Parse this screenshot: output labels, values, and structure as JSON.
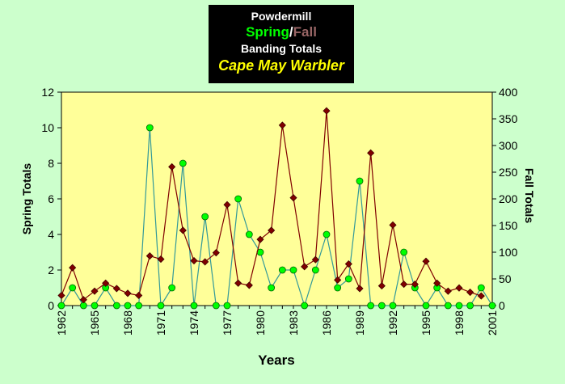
{
  "title": {
    "line1": "Powdermill",
    "spring_word": "Spring",
    "slash": "/",
    "fall_word": "Fall",
    "line3": "Banding Totals",
    "species": "Cape May Warbler"
  },
  "colors": {
    "background": "#ccffcc",
    "plot_background": "#ffff99",
    "spring_line": "#339999",
    "spring_marker": "#00ff00",
    "fall_line": "#800000",
    "fall_marker": "#800000"
  },
  "chart_data": {
    "type": "line",
    "xlabel": "Years",
    "ylabel": "Spring Totals",
    "y2label": "Fall Totals",
    "xlim": [
      1962,
      2001
    ],
    "ylim": [
      0,
      12
    ],
    "y2lim": [
      0,
      400
    ],
    "x_ticks": [
      "1962",
      "1965",
      "1968",
      "1971",
      "1974",
      "1977",
      "1980",
      "1983",
      "1986",
      "1989",
      "1992",
      "1995",
      "1998",
      "2001"
    ],
    "y_ticks": [
      "0",
      "2",
      "4",
      "6",
      "8",
      "10",
      "12"
    ],
    "y2_ticks": [
      "0",
      "50",
      "100",
      "150",
      "200",
      "250",
      "300",
      "350",
      "400"
    ],
    "grid": false,
    "legend": "none",
    "x": [
      1962,
      1963,
      1964,
      1965,
      1966,
      1967,
      1968,
      1969,
      1970,
      1971,
      1972,
      1973,
      1974,
      1975,
      1976,
      1977,
      1978,
      1979,
      1980,
      1981,
      1982,
      1983,
      1984,
      1985,
      1986,
      1987,
      1988,
      1989,
      1990,
      1991,
      1992,
      1993,
      1994,
      1995,
      1996,
      1997,
      1998,
      1999,
      2000,
      2001
    ],
    "series": [
      {
        "name": "Spring",
        "axis": "left",
        "values": [
          0,
          1,
          0,
          0,
          1,
          0,
          0,
          0,
          10,
          0,
          1,
          8,
          0,
          5,
          0,
          0,
          6,
          4,
          3,
          1,
          2,
          2,
          0,
          2,
          4,
          1,
          1.5,
          7,
          0,
          0,
          0,
          3,
          1,
          0,
          1,
          0,
          0,
          0,
          1,
          0
        ]
      },
      {
        "name": "Fall",
        "axis": "right",
        "values": [
          19,
          71,
          11,
          27,
          42,
          32,
          23,
          19,
          93,
          87,
          260,
          141,
          84,
          82,
          99,
          189,
          42,
          38,
          124,
          141,
          338,
          202,
          73,
          86,
          365,
          48,
          78,
          32,
          286,
          37,
          151,
          40,
          40,
          83,
          42,
          27,
          33,
          25,
          18,
          null
        ]
      }
    ]
  }
}
